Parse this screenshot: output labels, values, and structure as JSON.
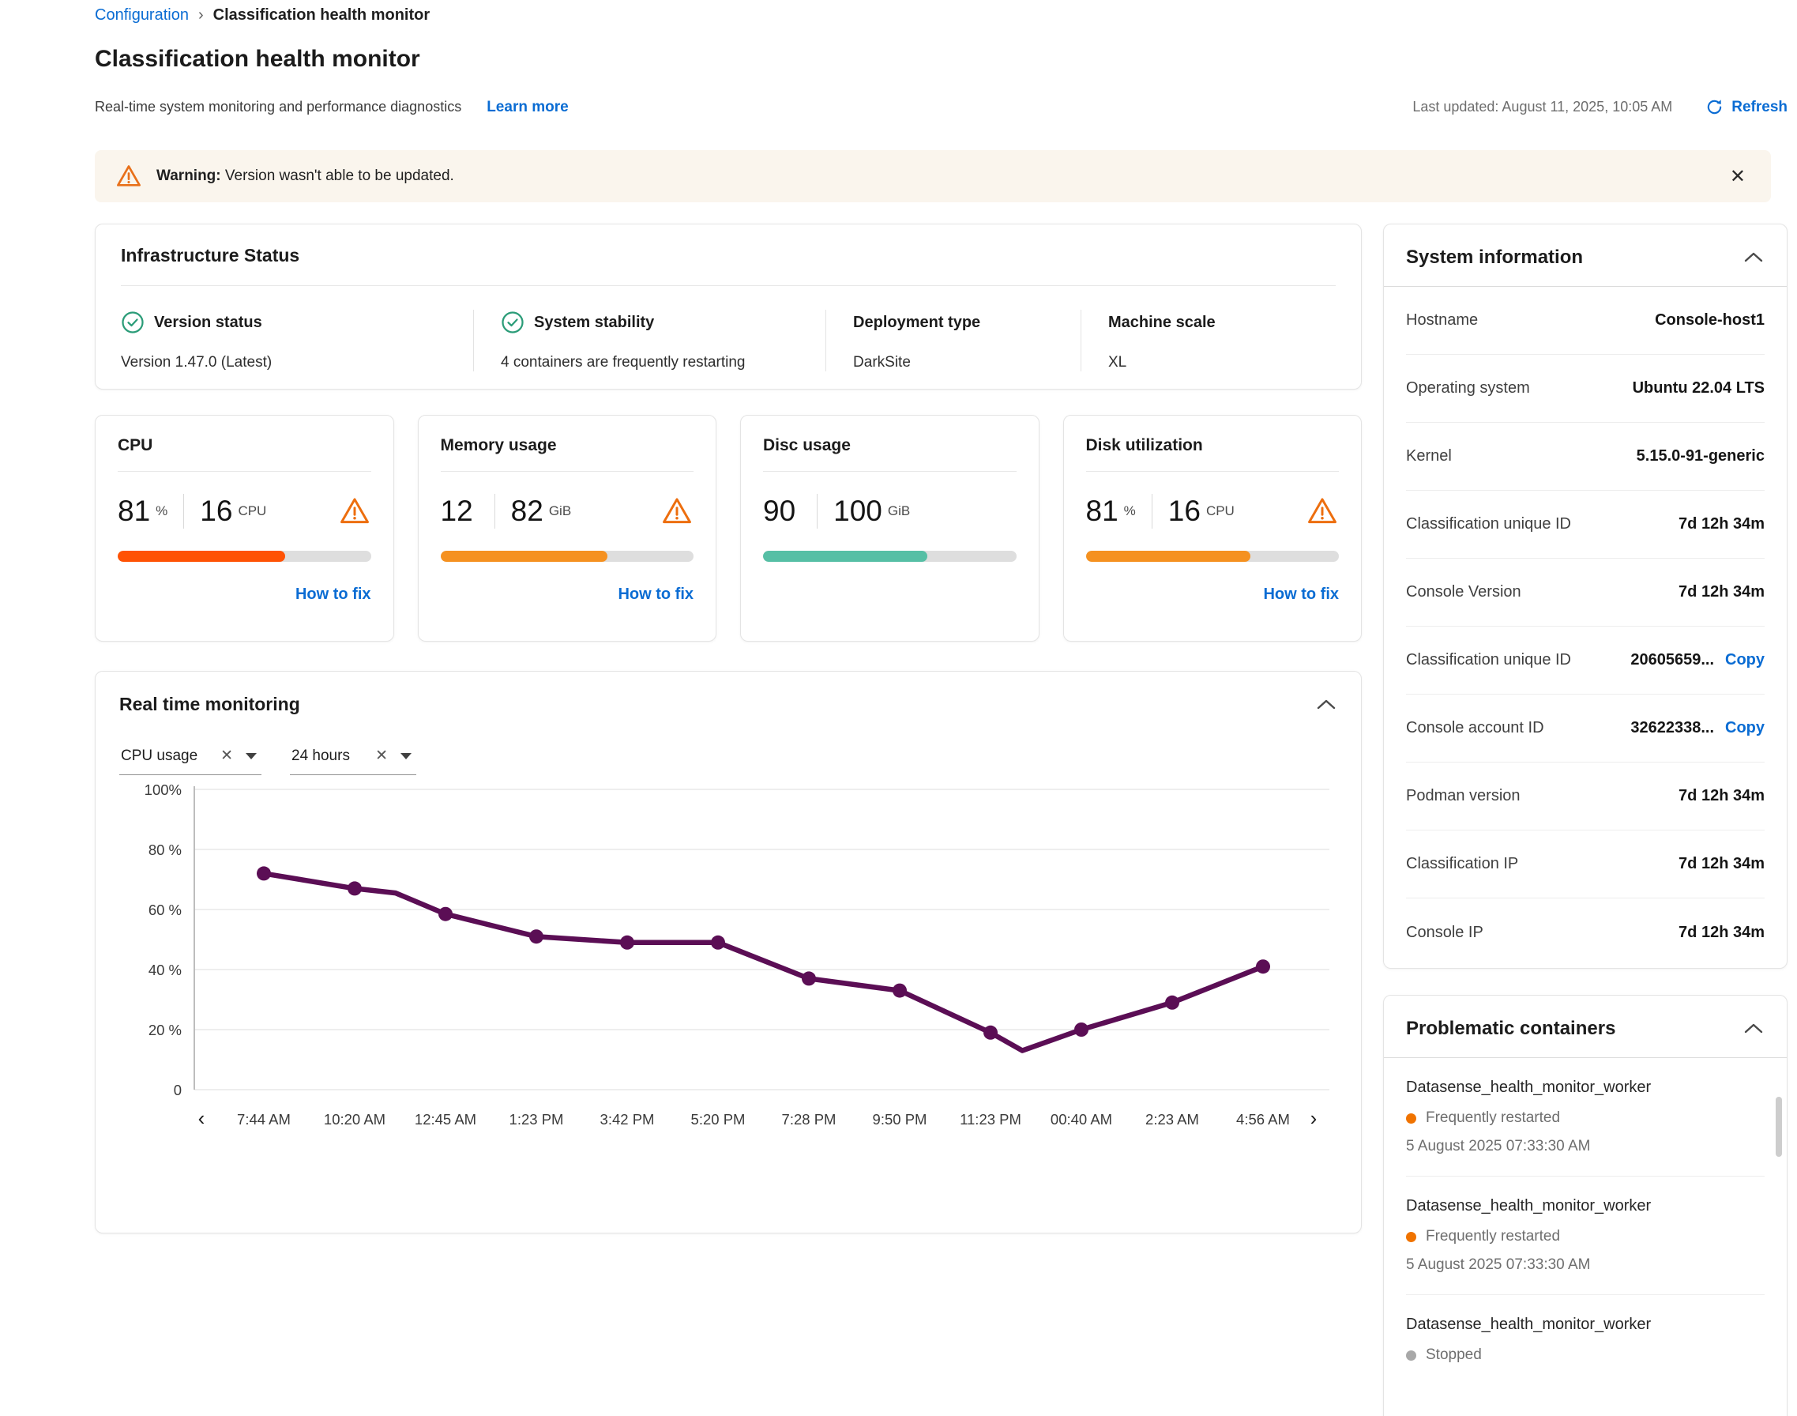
{
  "breadcrumb": {
    "link": "Configuration",
    "separator": "›",
    "current": "Classification health monitor"
  },
  "header": {
    "title": "Classification health monitor",
    "subtitle": "Real-time system monitoring and performance diagnostics",
    "learn_more": "Learn more",
    "last_updated": "Last updated: August 11, 2025, 10:05 AM",
    "refresh_label": "Refresh"
  },
  "banner": {
    "bold": "Warning:",
    "message": "Version wasn't able to be updated.",
    "close_glyph": "✕"
  },
  "infrastructure": {
    "title": "Infrastructure Status",
    "items": [
      {
        "icon": "check-circle",
        "label": "Version status",
        "value": "Version 1.47.0 (Latest)"
      },
      {
        "icon": "check-circle",
        "label": "System stability",
        "value": "4 containers are frequently restarting"
      },
      {
        "icon": null,
        "label": "Deployment type",
        "value": "DarkSite"
      },
      {
        "icon": null,
        "label": "Machine scale",
        "value": "XL"
      }
    ]
  },
  "metrics": {
    "cards": [
      {
        "title": "CPU",
        "v1": "81",
        "u1": "%",
        "v2": "16",
        "u2": "CPU",
        "warning": true,
        "bar_color": "#FF5204",
        "bar_pct": 66,
        "link_label": "How to fix"
      },
      {
        "title": "Memory usage",
        "v1": "12",
        "u1": "",
        "v2": "82",
        "u2": "GiB",
        "warning": true,
        "bar_color": "#F59120",
        "bar_pct": 66,
        "link_label": "How to fix"
      },
      {
        "title": "Disc usage",
        "v1": "90",
        "u1": "",
        "v2": "100",
        "u2": "GiB",
        "warning": false,
        "bar_color": "#56BFA5",
        "bar_pct": 65,
        "link_label": ""
      },
      {
        "title": "Disk utilization",
        "v1": "81",
        "u1": "%",
        "v2": "16",
        "u2": "CPU",
        "warning": true,
        "bar_color": "#F59120",
        "bar_pct": 65,
        "link_label": "How to fix"
      }
    ]
  },
  "monitoring": {
    "title": "Real time monitoring",
    "filters": [
      {
        "value": "CPU usage"
      },
      {
        "value": "24 hours"
      }
    ],
    "nav_prev": "‹",
    "nav_next": "›"
  },
  "chart_data": {
    "type": "line",
    "title": "",
    "xlabel": "",
    "ylabel": "",
    "ylim": [
      0,
      100
    ],
    "grid": true,
    "legend": "none",
    "categories": [
      "7:44 AM",
      "10:20 AM",
      "12:45 AM",
      "1:23 PM",
      "3:42 PM",
      "5:20 PM",
      "7:28 PM",
      "9:50 PM",
      "11:23 PM",
      "00:40 AM",
      "2:23 AM",
      "4:56 AM"
    ],
    "values": [
      72,
      67,
      58.5,
      51,
      49,
      49,
      37,
      33,
      19,
      20,
      29,
      41
    ],
    "extra_vertices": [
      {
        "after_index": 1,
        "fraction": 0.45,
        "value": 65.5
      },
      {
        "after_index": 8,
        "fraction": 0.35,
        "value": 13
      }
    ],
    "yticks": [
      {
        "label": "100%",
        "v": 100
      },
      {
        "label": "80 %",
        "v": 80
      },
      {
        "label": "60 %",
        "v": 60
      },
      {
        "label": "40 %",
        "v": 40
      },
      {
        "label": "20 %",
        "v": 20
      },
      {
        "label": "0",
        "v": 0
      }
    ],
    "line_color": "#5B0E55",
    "point_color": "#5B0E55"
  },
  "system_info": {
    "title": "System information",
    "rows": [
      {
        "label": "Hostname",
        "value": "Console-host1",
        "action": null
      },
      {
        "label": "Operating system",
        "value": "Ubuntu 22.04 LTS",
        "action": null
      },
      {
        "label": "Kernel",
        "value": "5.15.0-91-generic",
        "action": null
      },
      {
        "label": "Classification unique ID",
        "value": "7d 12h 34m",
        "action": null
      },
      {
        "label": "Console Version",
        "value": "7d 12h 34m",
        "action": null
      },
      {
        "label": "Classification unique ID",
        "value": "20605659...",
        "action": "Copy"
      },
      {
        "label": "Console account ID",
        "value": "32622338...",
        "action": "Copy"
      },
      {
        "label": "Podman version",
        "value": "7d 12h 34m",
        "action": null
      },
      {
        "label": "Classification IP",
        "value": "7d 12h 34m",
        "action": null
      },
      {
        "label": "Console IP",
        "value": "7d 12h 34m",
        "action": null
      }
    ]
  },
  "containers": {
    "title": "Problematic containers",
    "items": [
      {
        "name": "Datasense_health_monitor_worker",
        "status": "Frequently restarted",
        "status_color": "#F07300",
        "date": "5 August 2025 07:33:30 AM"
      },
      {
        "name": "Datasense_health_monitor_worker",
        "status": "Frequently restarted",
        "status_color": "#F07300",
        "date": "5 August 2025 07:33:30 AM"
      },
      {
        "name": "Datasense_health_monitor_worker",
        "status": "Stopped",
        "status_color": "#A8A8A8",
        "date": ""
      }
    ]
  },
  "colors": {
    "link": "#0A6CD3",
    "warning_icon": "#ED6E0E",
    "banner_bg": "#FAF5ED",
    "check_green": "#2B9C78",
    "bar_track": "#DEDEDE",
    "chart_line": "#5B0E55"
  }
}
